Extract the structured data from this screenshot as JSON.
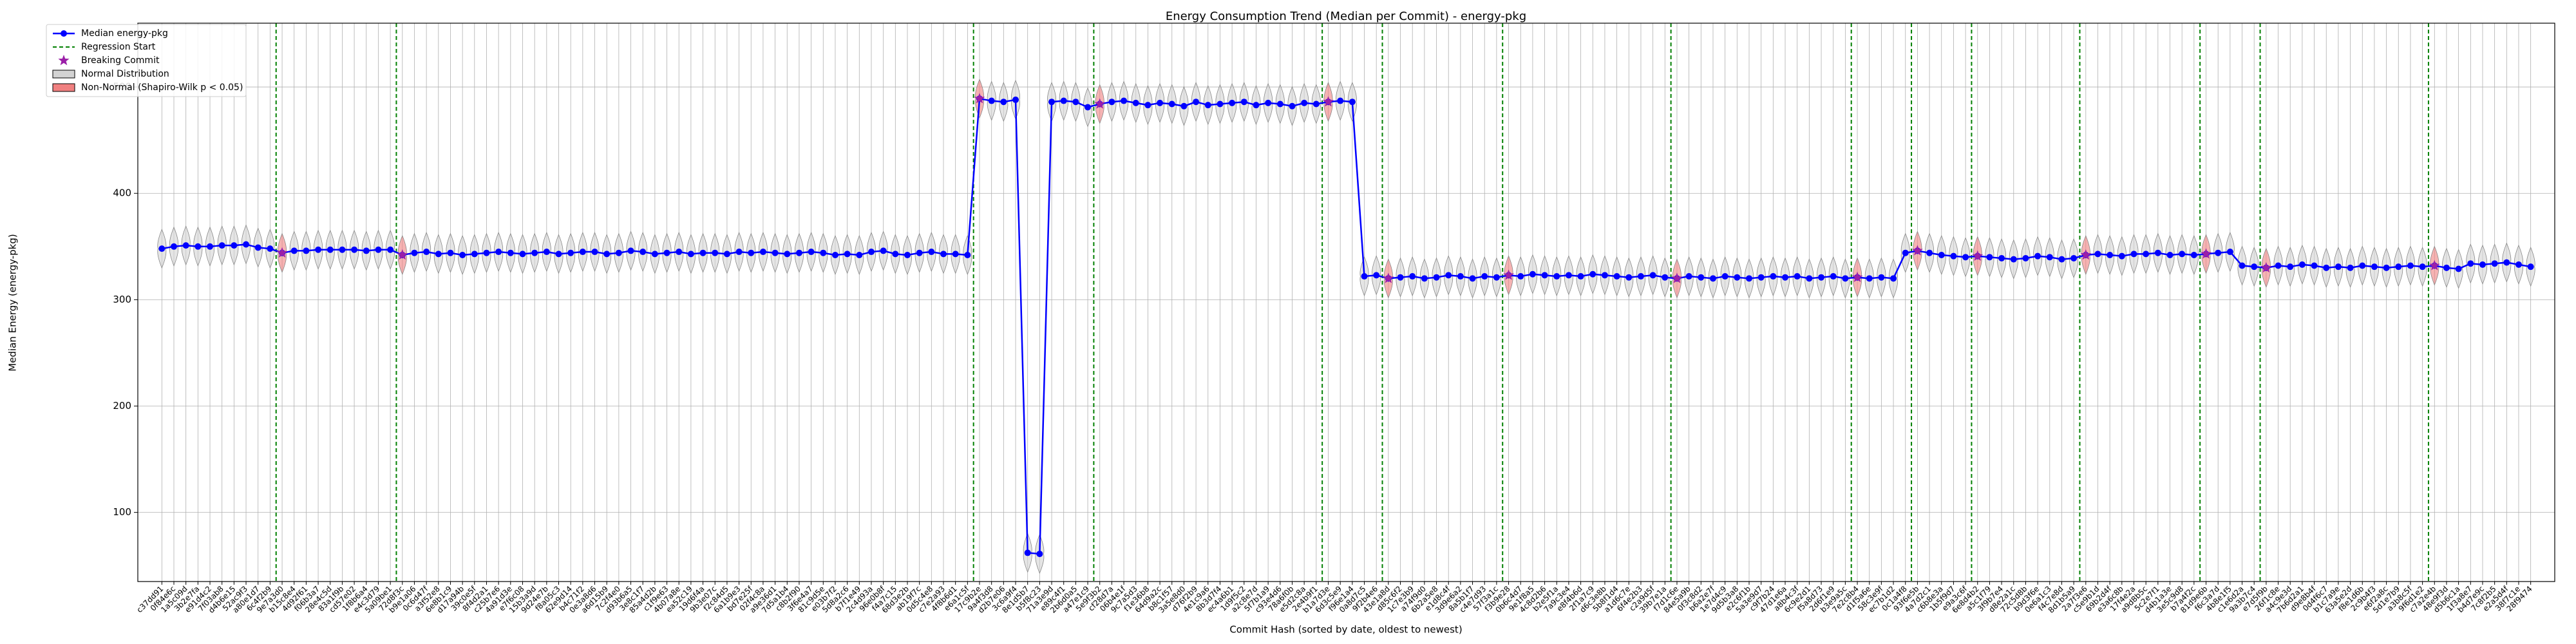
{
  "chart_data": {
    "type": "line",
    "title": "Energy Consumption Trend (Median per Commit) - energy-pkg",
    "xlabel": "Commit Hash (sorted by date, oldest to newest)",
    "ylabel": "Median Energy (energy-pkg)",
    "ylim": [
      35,
      560
    ],
    "yticks": [
      100,
      200,
      300,
      400,
      500
    ],
    "grid": true,
    "legend": "upper left",
    "legend_entries": [
      "Median energy-pkg",
      "Regression Start",
      "Breaking Commit",
      "Normal Distribution",
      "Non-Normal (Shapiro-Wilk p < 0.05)"
    ],
    "line_color": "#0000ff",
    "regression_color": "#008000",
    "breaking_color": "#9b1fa8",
    "normal_color": "#d3d3d3",
    "non_normal_color": "#f08080",
    "regression_starts": [
      10,
      20,
      68,
      78,
      97,
      102,
      112,
      126,
      141,
      146,
      151,
      160,
      170,
      175,
      189
    ],
    "breaking_commits": [
      10,
      20,
      68,
      78,
      97,
      102,
      112,
      126,
      141,
      146,
      151,
      160,
      170,
      175,
      189
    ],
    "categories": [
      "c37dd91",
      "0f84e6c",
      "1a5c09d",
      "3b2e7fa",
      "e91d4c2",
      "7f03ab8",
      "d4b6e15",
      "52ac9f3",
      "a80e1d7",
      "6c4f2b9",
      "9e7a3d0",
      "b15c8e4",
      "4d92f61",
      "f06b3a7",
      "28e4c5d",
      "83a1f9b",
      "cd57e02",
      "1f8b6a4",
      "e4c3d79",
      "5a09be1",
      "72d8f3c",
      "b9e1a06",
      "0c6d47f",
      "a3f52e8",
      "6e8b1c9",
      "d17a94b",
      "39c0e5f",
      "8f4d2a1",
      "c25b7e6",
      "4a91d3e",
      "e7f6c08",
      "15b3a9d",
      "9d24e7b",
      "f8a05c3",
      "62e9d14",
      "b4c71f2",
      "0e3a8d6",
      "a6d15b9",
      "7c2f4e0",
      "d93b6a5",
      "3e8c1f7",
      "85a4d2b",
      "c1f9e63",
      "4b07a8e",
      "ea52c19",
      "19d6f4a",
      "9b3e07c",
      "f2c84d5",
      "6a1b9e3",
      "bd7e25f",
      "02f4c8a",
      "a9e36d1",
      "7d5a1b4",
      "c8b2f90",
      "3f6e4a7",
      "81c9d5e",
      "e03b7f2",
      "5d8a2c6",
      "b7f1e49",
      "2c4d93a",
      "96e0b8f",
      "f4a7c15",
      "68d3e2b",
      "ab19f7c",
      "0d5c4e8",
      "c7e2a93",
      "4f8b6d1",
      "e6a1c5f",
      "17c9b2e",
      "9a4f3d8",
      "d2b7e06",
      "3c6a9f4",
      "8e1d5b7",
      "b5f8c23",
      "71a3e9d",
      "e89c4f1",
      "2b6d0a5",
      "a47e1c9",
      "5e9f3b2",
      "cf28d7a",
      "06b4e1f",
      "9c7a5d3",
      "f1e36b8",
      "64d9a2c",
      "b8c1f57",
      "3a5e8d0",
      "d76f2b9",
      "4e1c9a6",
      "8b3d7f4",
      "ec4a6b1",
      "1d9f5c2",
      "a2c8e7d",
      "5f7b1a9",
      "c93e4d6",
      "78a6f0b",
      "e5d2c8a",
      "2e4b9f1",
      "b1a7d3e",
      "6d3c5e9",
      "f96e1a4",
      "0a8d7c5",
      "9f2b4e6",
      "43e1a8d",
      "d85c6f2",
      "1c7e3b9",
      "a74f9d0",
      "6b2a5e8",
      "e1d8c4f",
      "3d9e6a2",
      "8a5b1f7",
      "c4e7d93",
      "57f3a1c",
      "f3b9e28",
      "0b6c4d7",
      "9e1f8a5",
      "4c8d2b6",
      "b2e5f1a",
      "7a9c3e4",
      "e8f4b6d",
      "2f1a7c9",
      "d6c3e8b",
      "5b8f1d4",
      "a1d6c7e",
      "6f4e2b3",
      "c2a9d5f",
      "39b7e1a",
      "f7d1c6e",
      "84e5a9b",
      "0f3c8d2",
      "b6a2e7f",
      "1e7d4c9",
      "9d5b3a8",
      "e2c6f1b",
      "5a3e9d7",
      "c9f7b24",
      "47d1e6a",
      "a8b4c3f",
      "6c9e2d1",
      "f5a8d73",
      "2d6f1e9",
      "b3e9a5c",
      "7e2c8b4",
      "d1f5a6e",
      "58c3e9f",
      "ec7b1d2",
      "0c1a4f8",
      "93f6e5b",
      "4a7d2c1",
      "c6b8e3a",
      "1b5f9d7",
      "e9a3c6f",
      "6e8d4b2",
      "a5c1f79",
      "3f9b7e4",
      "d8e2a1c",
      "72c5d8b",
      "b9d3f6e",
      "0e6a1c3",
      "f4c7e8d",
      "8d1b5a9",
      "2a7f3e6",
      "c5e9b1d",
      "69b2d4f",
      "e3a6c8b",
      "17f4e2a",
      "a9d8b5c",
      "5c2e7f1",
      "d4b1a3e",
      "3e5c9d8",
      "b7a4f2c",
      "81d9e6b",
      "f6c3a7d",
      "4b8e1f5",
      "c1e6d2a",
      "9a3b7c4",
      "e7d5f9b",
      "26f1c8e",
      "a4c9e3d",
      "7b6d2a1",
      "d9e8b4f",
      "0d4f6c7",
      "b1c7a9e",
      "63a5e2d",
      "f8e1d6b",
      "2c9b4f3",
      "e6f2a8c",
      "5d1e7b9",
      "a3b8c5f",
      "9f6d1e2",
      "c7a2e4b",
      "48e9f3d",
      "d5b6c1a",
      "1f3a8e7",
      "b4d7e9c",
      "7c8f2b5",
      "e2a5d4f",
      "38f7c1e",
      "28f9474"
    ],
    "values": [
      348,
      350,
      351,
      350,
      350,
      351,
      351,
      352,
      349,
      348,
      344,
      346,
      346,
      347,
      347,
      347,
      347,
      346,
      347,
      347,
      342,
      344,
      345,
      343,
      344,
      342,
      343,
      344,
      345,
      344,
      343,
      344,
      345,
      343,
      344,
      345,
      345,
      343,
      344,
      346,
      345,
      343,
      344,
      345,
      343,
      344,
      344,
      343,
      345,
      344,
      345,
      344,
      343,
      344,
      345,
      344,
      342,
      343,
      342,
      345,
      346,
      343,
      342,
      344,
      345,
      343,
      343,
      342,
      489,
      487,
      486,
      488,
      62,
      61,
      486,
      487,
      486,
      481,
      484,
      486,
      487,
      485,
      483,
      485,
      484,
      482,
      486,
      483,
      484,
      485,
      486,
      483,
      485,
      484,
      482,
      485,
      484,
      486,
      487,
      486,
      322,
      323,
      320,
      321,
      322,
      320,
      321,
      323,
      322,
      320,
      322,
      321,
      323,
      322,
      324,
      323,
      322,
      323,
      322,
      324,
      323,
      322,
      321,
      322,
      323,
      321,
      320,
      322,
      321,
      320,
      322,
      321,
      320,
      321,
      322,
      321,
      322,
      320,
      321,
      322,
      320,
      321,
      320,
      321,
      320,
      344,
      346,
      344,
      342,
      341,
      340,
      341,
      340,
      339,
      338,
      339,
      341,
      340,
      338,
      339,
      342,
      343,
      342,
      341,
      343,
      343,
      344,
      342,
      343,
      342,
      343,
      344,
      345,
      332,
      331,
      330,
      332,
      331,
      333,
      332,
      330,
      331,
      330,
      332,
      331,
      330,
      331,
      332,
      331,
      332,
      330,
      329,
      334,
      333,
      334,
      335,
      333,
      331
    ]
  }
}
